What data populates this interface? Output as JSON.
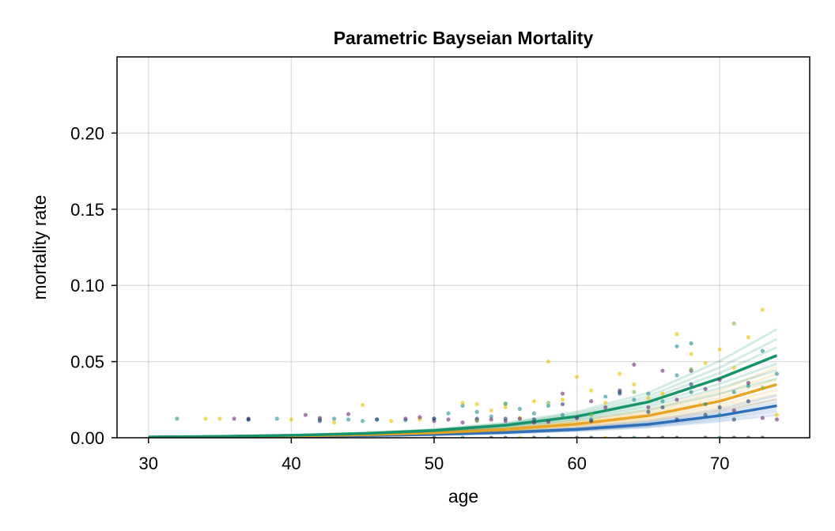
{
  "chart_data": {
    "type": "scatter",
    "title": "Parametric Bayseian Mortality",
    "xlabel": "age",
    "ylabel": "mortality rate",
    "xlim": [
      27.8,
      76.3
    ],
    "ylim": [
      0,
      0.25
    ],
    "x_ticks": [
      "30",
      "40",
      "50",
      "60",
      "70"
    ],
    "x_tick_values": [
      30,
      40,
      50,
      60,
      70
    ],
    "y_ticks": [
      "0.00",
      "0.05",
      "0.10",
      "0.15",
      "0.20"
    ],
    "y_tick_values": [
      0,
      0.05,
      0.1,
      0.15,
      0.2
    ],
    "grid": true,
    "curves": [
      {
        "color": "#2f6fb8",
        "x": [
          30,
          35,
          40,
          45,
          50,
          55,
          60,
          65,
          70,
          74
        ],
        "y": [
          0.0004,
          0.0006,
          0.0009,
          0.0014,
          0.0022,
          0.0035,
          0.0055,
          0.0088,
          0.0145,
          0.021
        ]
      },
      {
        "color": "#e8a424",
        "x": [
          30,
          35,
          40,
          45,
          50,
          55,
          60,
          65,
          70,
          74
        ],
        "y": [
          0.0004,
          0.0007,
          0.0012,
          0.002,
          0.0033,
          0.0055,
          0.009,
          0.0145,
          0.024,
          0.035
        ]
      },
      {
        "color": "#17946a",
        "x": [
          30,
          35,
          40,
          45,
          50,
          55,
          60,
          65,
          70,
          74
        ],
        "y": [
          0.0005,
          0.0009,
          0.0016,
          0.0028,
          0.0048,
          0.0082,
          0.014,
          0.0235,
          0.039,
          0.054
        ]
      }
    ],
    "points": [
      {
        "color": "#1f8f8c",
        "data": [
          [
            32,
            0.0125
          ],
          [
            37,
            0.012
          ],
          [
            39,
            0.0125
          ],
          [
            42,
            0.012
          ],
          [
            43,
            0.0125
          ],
          [
            44,
            0.012
          ],
          [
            45,
            0.011
          ],
          [
            46,
            0.012
          ],
          [
            48,
            0.0115
          ],
          [
            50,
            0.0125
          ],
          [
            51,
            0.016
          ],
          [
            52,
            0.021
          ],
          [
            53,
            0.017
          ],
          [
            54,
            0.014
          ],
          [
            55,
            0.0225
          ],
          [
            56,
            0.019
          ],
          [
            57,
            0.016
          ],
          [
            58,
            0.021
          ],
          [
            59,
            0.015
          ],
          [
            60,
            0.013
          ],
          [
            61,
            0.012
          ],
          [
            62,
            0.027
          ],
          [
            63,
            0.03
          ],
          [
            64,
            0.025
          ],
          [
            65,
            0.029
          ],
          [
            66,
            0.024
          ],
          [
            67,
            0.06
          ],
          [
            67,
            0.041
          ],
          [
            68,
            0.062
          ],
          [
            68,
            0.03
          ],
          [
            69,
            0.022
          ],
          [
            70,
            0.015
          ],
          [
            71,
            0.03
          ],
          [
            72,
            0.034
          ],
          [
            73,
            0.057
          ],
          [
            74,
            0.042
          ],
          [
            52,
            0.0
          ],
          [
            58,
            0.0
          ],
          [
            64,
            0.0
          ],
          [
            70,
            0.0
          ]
        ]
      },
      {
        "color": "#e8c300",
        "data": [
          [
            34,
            0.0125
          ],
          [
            35,
            0.0125
          ],
          [
            40,
            0.012
          ],
          [
            43,
            0.01
          ],
          [
            45,
            0.0215
          ],
          [
            47,
            0.011
          ],
          [
            49,
            0.012
          ],
          [
            52,
            0.023
          ],
          [
            53,
            0.022
          ],
          [
            54,
            0.018
          ],
          [
            55,
            0.02
          ],
          [
            56,
            0.013
          ],
          [
            57,
            0.024
          ],
          [
            58,
            0.05
          ],
          [
            59,
            0.025
          ],
          [
            60,
            0.04
          ],
          [
            61,
            0.031
          ],
          [
            62,
            0.023
          ],
          [
            63,
            0.042
          ],
          [
            64,
            0.035
          ],
          [
            65,
            0.026
          ],
          [
            66,
            0.029
          ],
          [
            67,
            0.068
          ],
          [
            68,
            0.055
          ],
          [
            69,
            0.049
          ],
          [
            70,
            0.058
          ],
          [
            71,
            0.046
          ],
          [
            72,
            0.066
          ],
          [
            73,
            0.084
          ],
          [
            74,
            0.015
          ],
          [
            56,
            0.0
          ],
          [
            62,
            0.0
          ]
        ]
      },
      {
        "color": "#6a2c70",
        "data": [
          [
            36,
            0.0125
          ],
          [
            37,
            0.0125
          ],
          [
            41,
            0.015
          ],
          [
            42,
            0.013
          ],
          [
            44,
            0.0155
          ],
          [
            48,
            0.0125
          ],
          [
            49,
            0.0135
          ],
          [
            50,
            0.011
          ],
          [
            51,
            0.012
          ],
          [
            52,
            0.01
          ],
          [
            53,
            0.0115
          ],
          [
            54,
            0.012
          ],
          [
            55,
            0.011
          ],
          [
            56,
            0.0125
          ],
          [
            57,
            0.01
          ],
          [
            58,
            0.0105
          ],
          [
            59,
            0.029
          ],
          [
            60,
            0.013
          ],
          [
            61,
            0.024
          ],
          [
            62,
            0.02
          ],
          [
            63,
            0.031
          ],
          [
            64,
            0.048
          ],
          [
            65,
            0.02
          ],
          [
            66,
            0.044
          ],
          [
            67,
            0.025
          ],
          [
            68,
            0.044
          ],
          [
            69,
            0.032
          ],
          [
            70,
            0.038
          ],
          [
            71,
            0.018
          ],
          [
            72,
            0.036
          ],
          [
            73,
            0.013
          ],
          [
            74,
            0.012
          ],
          [
            54,
            0.0
          ],
          [
            60,
            0.0
          ],
          [
            66,
            0.0
          ],
          [
            72,
            0.0
          ]
        ]
      },
      {
        "color": "#1f3f70",
        "data": [
          [
            37,
            0.012
          ],
          [
            42,
            0.011
          ],
          [
            46,
            0.012
          ],
          [
            50,
            0.0125
          ],
          [
            53,
            0.0125
          ],
          [
            55,
            0.0125
          ],
          [
            57,
            0.012
          ],
          [
            59,
            0.022
          ],
          [
            61,
            0.011
          ],
          [
            63,
            0.029
          ],
          [
            65,
            0.017
          ],
          [
            66,
            0.02
          ],
          [
            67,
            0.012
          ],
          [
            68,
            0.035
          ],
          [
            69,
            0.015
          ],
          [
            70,
            0.02
          ],
          [
            71,
            0.012
          ],
          [
            72,
            0.024
          ],
          [
            50,
            0.0
          ],
          [
            55,
            0.0
          ],
          [
            57,
            0.0
          ],
          [
            61,
            0.0
          ],
          [
            63,
            0.0
          ],
          [
            65,
            0.0
          ],
          [
            67,
            0.0
          ],
          [
            69,
            0.0
          ],
          [
            71,
            0.0
          ],
          [
            73,
            0.0
          ]
        ]
      },
      {
        "color": "#7ab84a",
        "data": [
          [
            53,
            0.011
          ],
          [
            55,
            0.022
          ],
          [
            58,
            0.023
          ],
          [
            61,
            0.015
          ],
          [
            64,
            0.03
          ],
          [
            68,
            0.045
          ],
          [
            71,
            0.075
          ],
          [
            73,
            0.033
          ]
        ]
      }
    ]
  }
}
